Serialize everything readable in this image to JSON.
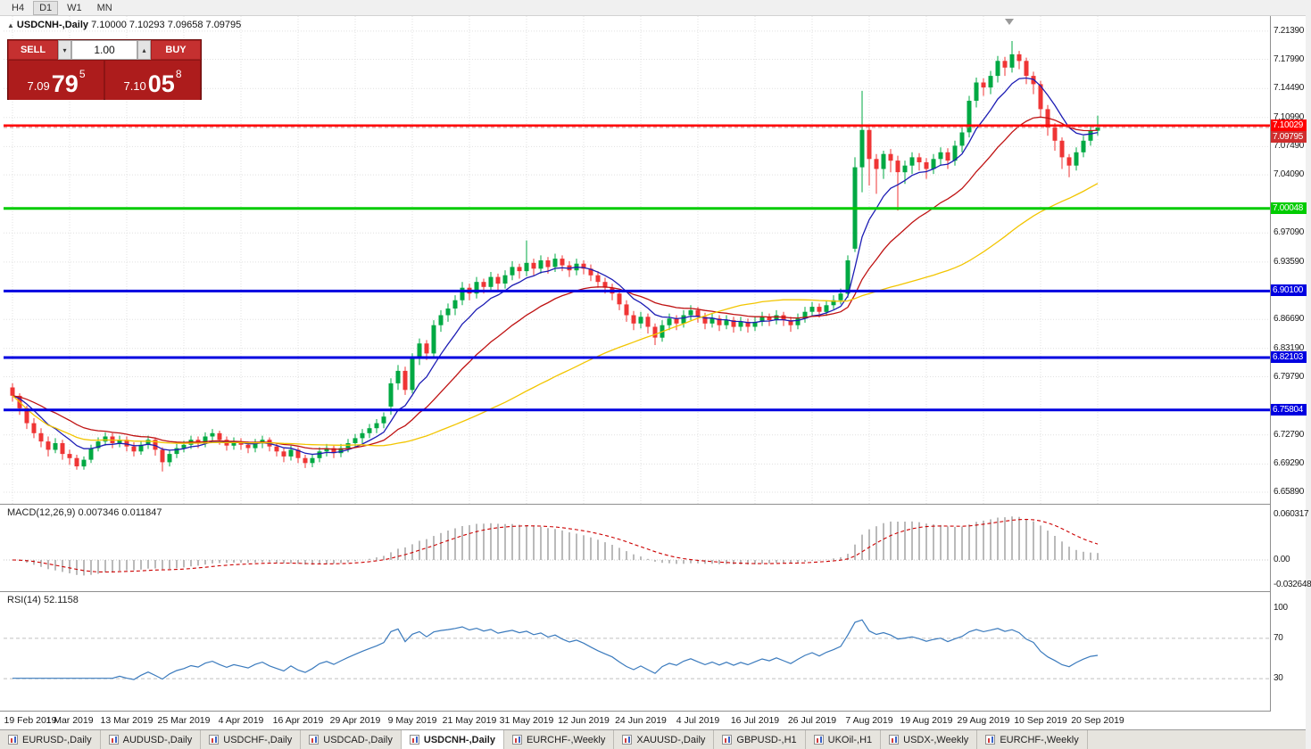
{
  "toolbar": {
    "timeframes": [
      {
        "label": "H4",
        "active": false
      },
      {
        "label": "D1",
        "active": true
      },
      {
        "label": "W1",
        "active": false
      },
      {
        "label": "MN",
        "active": false
      }
    ]
  },
  "chart_header": {
    "symbol": "USDCNH-,Daily",
    "ohlc": "7.10000 7.10293 7.09658 7.09795"
  },
  "trade_panel": {
    "sell_label": "SELL",
    "buy_label": "BUY",
    "volume": "1.00",
    "sell_price_prefix": "7.09",
    "sell_price_big": "79",
    "sell_price_sup": "5",
    "buy_price_prefix": "7.10",
    "buy_price_big": "05",
    "buy_price_sup": "8"
  },
  "panels": {
    "macd": {
      "label": "MACD(12,26,9) 0.007346 0.011847"
    },
    "rsi": {
      "label": "RSI(14) 52.1158"
    }
  },
  "colors": {
    "candle_up": "#00a943",
    "candle_down": "#ef3535",
    "ma_fast": "#1c1cb4",
    "ma_mid": "#bf1212",
    "ma_slower": "#f2c500",
    "grid": "#e0e0e0",
    "macd_hist": "#a8a8a8",
    "macd_signal": "#cc0000",
    "rsi_line": "#3a7abd",
    "bid_tag": "#cf2e2e"
  },
  "chart_data": {
    "type": "candlestick",
    "symbol": "USDCNH",
    "timeframe": "Daily",
    "ticks_every_n_candles": 8,
    "x_tick_labels": [
      "19 Feb 2019",
      "1 Mar 2019",
      "13 Mar 2019",
      "25 Mar 2019",
      "4 Apr 2019",
      "16 Apr 2019",
      "29 Apr 2019",
      "9 May 2019",
      "21 May 2019",
      "31 May 2019",
      "12 Jun 2019",
      "24 Jun 2019",
      "4 Jul 2019",
      "16 Jul 2019",
      "26 Jul 2019",
      "7 Aug 2019",
      "19 Aug 2019",
      "29 Aug 2019",
      "10 Sep 2019",
      "20 Sep 2019"
    ],
    "y_axis_labels": [
      "7.21390",
      "7.17990",
      "7.14490",
      "7.10990",
      "7.07490",
      "7.04090",
      "6.97090",
      "6.93590",
      "6.86690",
      "6.83190",
      "6.79790",
      "6.72790",
      "6.69290",
      "6.65890"
    ],
    "price_range": {
      "min": 6.645,
      "max": 7.232
    },
    "levels": [
      {
        "price": 7.10029,
        "label": "7.10029",
        "color": "#ff0000",
        "width": 2.5
      },
      {
        "price": 7.00048,
        "label": "7.00048",
        "color": "#00cc00",
        "width": 3
      },
      {
        "price": 6.901,
        "label": "6.90100",
        "color": "#0000e0",
        "width": 3
      },
      {
        "price": 6.82103,
        "label": "6.82103",
        "color": "#0000e0",
        "width": 3
      },
      {
        "price": 6.75804,
        "label": "6.75804",
        "color": "#0000e0",
        "width": 3
      }
    ],
    "bid": {
      "price": 7.09795,
      "label": "7.09795"
    },
    "moving_averages": [
      {
        "type": "ema",
        "period": 8,
        "color": "#1c1cb4"
      },
      {
        "type": "ema",
        "period": 21,
        "color": "#bf1212"
      },
      {
        "type": "sma",
        "period": 50,
        "color": "#f2c500"
      }
    ],
    "indicators": [
      {
        "name": "MACD",
        "params": "12,26,9",
        "values": "0.007346 0.011847",
        "axis_labels": [
          "0.060317",
          "0.00",
          "-0.032648"
        ]
      },
      {
        "name": "RSI",
        "params": "14",
        "value": "52.1158",
        "axis_labels": [
          "100",
          "70",
          "30"
        ],
        "levels": [
          70,
          30
        ],
        "range": {
          "min": 0,
          "max": 100
        }
      }
    ],
    "candles": [
      [
        6.785,
        6.79,
        6.768,
        6.775
      ],
      [
        6.775,
        6.778,
        6.752,
        6.76
      ],
      [
        6.76,
        6.763,
        6.735,
        6.742
      ],
      [
        6.742,
        6.748,
        6.724,
        6.73
      ],
      [
        6.73,
        6.736,
        6.713,
        6.72
      ],
      [
        6.72,
        6.726,
        6.702,
        6.71
      ],
      [
        6.71,
        6.724,
        6.706,
        6.718
      ],
      [
        6.718,
        6.722,
        6.698,
        6.705
      ],
      [
        6.705,
        6.71,
        6.692,
        6.7
      ],
      [
        6.7,
        6.704,
        6.686,
        6.69
      ],
      [
        6.69,
        6.702,
        6.686,
        6.698
      ],
      [
        6.698,
        6.716,
        6.694,
        6.712
      ],
      [
        6.712,
        6.725,
        6.708,
        6.72
      ],
      [
        6.72,
        6.731,
        6.715,
        6.726
      ],
      [
        6.726,
        6.73,
        6.712,
        6.718
      ],
      [
        6.718,
        6.727,
        6.713,
        6.722
      ],
      [
        6.722,
        6.726,
        6.708,
        6.714
      ],
      [
        6.714,
        6.719,
        6.702,
        6.708
      ],
      [
        6.708,
        6.721,
        6.704,
        6.716
      ],
      [
        6.716,
        6.727,
        6.711,
        6.722
      ],
      [
        6.722,
        6.725,
        6.703,
        6.71
      ],
      [
        6.71,
        6.713,
        6.684,
        6.695
      ],
      [
        6.695,
        6.71,
        6.69,
        6.705
      ],
      [
        6.705,
        6.717,
        6.7,
        6.712
      ],
      [
        6.712,
        6.721,
        6.707,
        6.716
      ],
      [
        6.716,
        6.727,
        6.711,
        6.722
      ],
      [
        6.722,
        6.726,
        6.712,
        6.718
      ],
      [
        6.718,
        6.731,
        6.713,
        6.726
      ],
      [
        6.726,
        6.735,
        6.72,
        6.73
      ],
      [
        6.73,
        6.733,
        6.716,
        6.722
      ],
      [
        6.722,
        6.726,
        6.709,
        6.715
      ],
      [
        6.715,
        6.725,
        6.71,
        6.72
      ],
      [
        6.72,
        6.724,
        6.71,
        6.716
      ],
      [
        6.716,
        6.72,
        6.706,
        6.712
      ],
      [
        6.712,
        6.723,
        6.707,
        6.718
      ],
      [
        6.718,
        6.727,
        6.712,
        6.722
      ],
      [
        6.722,
        6.725,
        6.708,
        6.714
      ],
      [
        6.714,
        6.718,
        6.702,
        6.708
      ],
      [
        6.708,
        6.712,
        6.695,
        6.702
      ],
      [
        6.702,
        6.715,
        6.697,
        6.71
      ],
      [
        6.71,
        6.713,
        6.694,
        6.7
      ],
      [
        6.7,
        6.704,
        6.688,
        6.694
      ],
      [
        6.694,
        6.705,
        6.689,
        6.7
      ],
      [
        6.7,
        6.713,
        6.695,
        6.708
      ],
      [
        6.708,
        6.717,
        6.702,
        6.712
      ],
      [
        6.712,
        6.715,
        6.7,
        6.706
      ],
      [
        6.706,
        6.717,
        6.701,
        6.712
      ],
      [
        6.712,
        6.723,
        6.707,
        6.718
      ],
      [
        6.718,
        6.729,
        6.713,
        6.724
      ],
      [
        6.724,
        6.735,
        6.718,
        6.73
      ],
      [
        6.73,
        6.741,
        6.724,
        6.736
      ],
      [
        6.736,
        6.747,
        6.73,
        6.742
      ],
      [
        6.742,
        6.755,
        6.736,
        6.75
      ],
      [
        6.762,
        6.796,
        6.752,
        6.79
      ],
      [
        6.79,
        6.812,
        6.782,
        6.805
      ],
      [
        6.805,
        6.81,
        6.776,
        6.782
      ],
      [
        6.782,
        6.826,
        6.778,
        6.82
      ],
      [
        6.82,
        6.844,
        6.812,
        6.838
      ],
      [
        6.838,
        6.842,
        6.818,
        6.826
      ],
      [
        6.826,
        6.866,
        6.82,
        6.86
      ],
      [
        6.86,
        6.878,
        6.852,
        6.872
      ],
      [
        6.872,
        6.886,
        6.864,
        6.88
      ],
      [
        6.88,
        6.896,
        6.872,
        6.89
      ],
      [
        6.89,
        6.912,
        6.884,
        6.905
      ],
      [
        6.905,
        6.91,
        6.89,
        6.898
      ],
      [
        6.898,
        6.918,
        6.892,
        6.912
      ],
      [
        6.912,
        6.916,
        6.898,
        6.906
      ],
      [
        6.906,
        6.924,
        6.9,
        6.918
      ],
      [
        6.918,
        6.922,
        6.902,
        6.91
      ],
      [
        6.91,
        6.926,
        6.904,
        6.92
      ],
      [
        6.92,
        6.937,
        6.914,
        6.93
      ],
      [
        6.93,
        6.934,
        6.916,
        6.925
      ],
      [
        6.925,
        6.962,
        6.919,
        6.935
      ],
      [
        6.935,
        6.94,
        6.92,
        6.928
      ],
      [
        6.928,
        6.944,
        6.922,
        6.938
      ],
      [
        6.938,
        6.942,
        6.922,
        6.93
      ],
      [
        6.93,
        6.946,
        6.924,
        6.94
      ],
      [
        6.94,
        6.944,
        6.925,
        6.932
      ],
      [
        6.932,
        6.937,
        6.918,
        6.926
      ],
      [
        6.926,
        6.94,
        6.92,
        6.934
      ],
      [
        6.934,
        6.938,
        6.921,
        6.928
      ],
      [
        6.928,
        6.933,
        6.913,
        6.92
      ],
      [
        6.92,
        6.925,
        6.905,
        6.912
      ],
      [
        6.912,
        6.917,
        6.898,
        6.905
      ],
      [
        6.905,
        6.91,
        6.89,
        6.898
      ],
      [
        6.898,
        6.902,
        6.878,
        6.885
      ],
      [
        6.885,
        6.89,
        6.864,
        6.872
      ],
      [
        6.872,
        6.877,
        6.854,
        6.862
      ],
      [
        6.862,
        6.876,
        6.856,
        6.87
      ],
      [
        6.87,
        6.874,
        6.85,
        6.858
      ],
      [
        6.858,
        6.862,
        6.836,
        6.845
      ],
      [
        6.845,
        6.866,
        6.84,
        6.86
      ],
      [
        6.86,
        6.874,
        6.854,
        6.868
      ],
      [
        6.868,
        6.872,
        6.854,
        6.862
      ],
      [
        6.862,
        6.878,
        6.857,
        6.872
      ],
      [
        6.872,
        6.884,
        6.866,
        6.878
      ],
      [
        6.878,
        6.882,
        6.863,
        6.87
      ],
      [
        6.87,
        6.875,
        6.855,
        6.862
      ],
      [
        6.862,
        6.874,
        6.857,
        6.868
      ],
      [
        6.868,
        6.872,
        6.853,
        6.86
      ],
      [
        6.86,
        6.872,
        6.855,
        6.866
      ],
      [
        6.866,
        6.87,
        6.851,
        6.858
      ],
      [
        6.858,
        6.87,
        6.853,
        6.864
      ],
      [
        6.864,
        6.868,
        6.851,
        6.858
      ],
      [
        6.858,
        6.87,
        6.853,
        6.864
      ],
      [
        6.864,
        6.876,
        6.859,
        6.87
      ],
      [
        6.87,
        6.874,
        6.859,
        6.866
      ],
      [
        6.866,
        6.878,
        6.861,
        6.872
      ],
      [
        6.872,
        6.876,
        6.859,
        6.866
      ],
      [
        6.866,
        6.87,
        6.852,
        6.86
      ],
      [
        6.86,
        6.874,
        6.855,
        6.868
      ],
      [
        6.868,
        6.882,
        6.863,
        6.876
      ],
      [
        6.876,
        6.888,
        6.871,
        6.882
      ],
      [
        6.882,
        6.886,
        6.869,
        6.876
      ],
      [
        6.876,
        6.89,
        6.871,
        6.884
      ],
      [
        6.884,
        6.896,
        6.879,
        6.89
      ],
      [
        6.89,
        6.904,
        6.885,
        6.898
      ],
      [
        6.898,
        6.944,
        6.893,
        6.938
      ],
      [
        6.952,
        7.062,
        6.948,
        7.05
      ],
      [
        7.05,
        7.142,
        7.02,
        7.095
      ],
      [
        7.095,
        7.1,
        7.028,
        7.06
      ],
      [
        7.06,
        7.066,
        7.018,
        7.048
      ],
      [
        7.048,
        7.07,
        7.036,
        7.066
      ],
      [
        7.066,
        7.072,
        7.044,
        7.058
      ],
      [
        7.058,
        7.064,
        6.998,
        7.044
      ],
      [
        7.044,
        7.058,
        7.03,
        7.052
      ],
      [
        7.052,
        7.068,
        7.042,
        7.062
      ],
      [
        7.062,
        7.067,
        7.046,
        7.056
      ],
      [
        7.056,
        7.061,
        7.036,
        7.048
      ],
      [
        7.048,
        7.066,
        7.042,
        7.06
      ],
      [
        7.06,
        7.074,
        7.052,
        7.068
      ],
      [
        7.068,
        7.073,
        7.048,
        7.058
      ],
      [
        7.058,
        7.082,
        7.052,
        7.076
      ],
      [
        7.076,
        7.098,
        7.068,
        7.092
      ],
      [
        7.092,
        7.136,
        7.086,
        7.13
      ],
      [
        7.13,
        7.158,
        7.122,
        7.152
      ],
      [
        7.152,
        7.157,
        7.136,
        7.146
      ],
      [
        7.146,
        7.166,
        7.138,
        7.16
      ],
      [
        7.16,
        7.184,
        7.152,
        7.178
      ],
      [
        7.178,
        7.183,
        7.16,
        7.17
      ],
      [
        7.17,
        7.202,
        7.164,
        7.186
      ],
      [
        7.186,
        7.19,
        7.168,
        7.178
      ],
      [
        7.178,
        7.182,
        7.15,
        7.16
      ],
      [
        7.16,
        7.165,
        7.138,
        7.15
      ],
      [
        7.15,
        7.154,
        7.11,
        7.12
      ],
      [
        7.12,
        7.125,
        7.088,
        7.098
      ],
      [
        7.098,
        7.103,
        7.07,
        7.082
      ],
      [
        7.082,
        7.086,
        7.048,
        7.062
      ],
      [
        7.062,
        7.066,
        7.038,
        7.052
      ],
      [
        7.052,
        7.074,
        7.046,
        7.068
      ],
      [
        7.068,
        7.088,
        7.062,
        7.082
      ],
      [
        7.082,
        7.1,
        7.076,
        7.094
      ],
      [
        7.094,
        7.112,
        7.088,
        7.098
      ]
    ]
  },
  "tabs": [
    {
      "label": "EURUSD-,Daily",
      "active": false
    },
    {
      "label": "AUDUSD-,Daily",
      "active": false
    },
    {
      "label": "USDCHF-,Daily",
      "active": false
    },
    {
      "label": "USDCAD-,Daily",
      "active": false
    },
    {
      "label": "USDCNH-,Daily",
      "active": true
    },
    {
      "label": "EURCHF-,Weekly",
      "active": false
    },
    {
      "label": "XAUUSD-,Daily",
      "active": false
    },
    {
      "label": "GBPUSD-,H1",
      "active": false
    },
    {
      "label": "UKOil-,H1",
      "active": false
    },
    {
      "label": "USDX-,Weekly",
      "active": false
    },
    {
      "label": "EURCHF-,Weekly",
      "active": false
    }
  ]
}
